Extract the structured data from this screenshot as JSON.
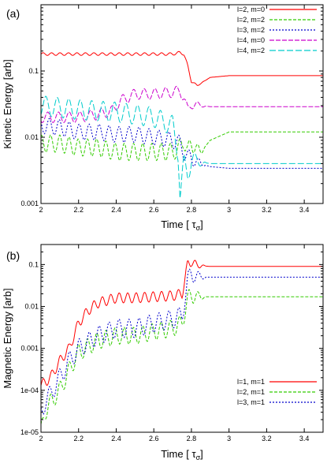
{
  "chart_data": [
    {
      "type": "line",
      "panel_label": "(a)",
      "xlabel": "Time [",
      "xlabel_sym": "τ",
      "xlabel_sub": "σ",
      "xlabel_end": "]",
      "ylabel": "Kinetic Energy [arb]",
      "xlim": [
        2.0,
        3.5
      ],
      "ylim": [
        0.001,
        1
      ],
      "yscale": "log",
      "xticks": [
        "2",
        "2.2",
        "2.4",
        "2.6",
        "2.8",
        "3",
        "3.2",
        "3.4"
      ],
      "yticks": [
        "0.001",
        "0.01",
        "0.1"
      ],
      "legend_position": "top-right",
      "series": [
        {
          "name": "l=2, m=0",
          "color": "#ff0000",
          "dash": "",
          "x": [
            2.0,
            2.1,
            2.2,
            2.3,
            2.4,
            2.5,
            2.6,
            2.7,
            2.74,
            2.76,
            2.78,
            2.8,
            2.83,
            2.9,
            3.0,
            3.2,
            3.5
          ],
          "y": [
            0.18,
            0.18,
            0.18,
            0.18,
            0.18,
            0.18,
            0.18,
            0.18,
            0.19,
            0.18,
            0.12,
            0.07,
            0.06,
            0.08,
            0.085,
            0.085,
            0.085
          ],
          "osc": 0.02
        },
        {
          "name": "l=2, m=2",
          "color": "#33cc00",
          "dash": "4,2",
          "x": [
            2.0,
            2.1,
            2.2,
            2.3,
            2.4,
            2.5,
            2.6,
            2.7,
            2.74,
            2.76,
            2.78,
            2.8,
            2.85,
            2.9,
            3.0,
            3.2,
            3.5
          ],
          "y": [
            0.008,
            0.008,
            0.007,
            0.007,
            0.006,
            0.006,
            0.006,
            0.006,
            0.007,
            0.009,
            0.006,
            0.008,
            0.006,
            0.009,
            0.012,
            0.012,
            0.012
          ],
          "osc": 0.13
        },
        {
          "name": "l=3, m=2",
          "color": "#0000cc",
          "dash": "2,2",
          "x": [
            2.0,
            2.1,
            2.2,
            2.3,
            2.4,
            2.5,
            2.6,
            2.7,
            2.74,
            2.76,
            2.78,
            2.8,
            2.85,
            2.9,
            3.0,
            3.2,
            3.5
          ],
          "y": [
            0.015,
            0.014,
            0.012,
            0.012,
            0.011,
            0.011,
            0.01,
            0.009,
            0.008,
            0.006,
            0.005,
            0.0048,
            0.004,
            0.0036,
            0.0034,
            0.0034,
            0.0034
          ],
          "osc": 0.12
        },
        {
          "name": "l=4, m=0",
          "color": "#cc00cc",
          "dash": "6,2",
          "x": [
            2.0,
            2.1,
            2.2,
            2.3,
            2.38,
            2.42,
            2.5,
            2.6,
            2.7,
            2.74,
            2.76,
            2.78,
            2.8,
            2.85,
            2.9,
            3.0,
            3.5
          ],
          "y": [
            0.02,
            0.02,
            0.02,
            0.022,
            0.025,
            0.035,
            0.045,
            0.045,
            0.048,
            0.05,
            0.04,
            0.025,
            0.032,
            0.03,
            0.029,
            0.029,
            0.029
          ],
          "osc": 0.08
        },
        {
          "name": "l=4, m=2",
          "color": "#00cccc",
          "dash": "8,3",
          "x": [
            2.0,
            2.1,
            2.2,
            2.3,
            2.4,
            2.5,
            2.6,
            2.7,
            2.73,
            2.74,
            2.76,
            2.78,
            2.8,
            2.85,
            2.9,
            3.0,
            3.5
          ],
          "y": [
            0.03,
            0.028,
            0.026,
            0.025,
            0.024,
            0.022,
            0.02,
            0.015,
            0.006,
            0.0012,
            0.004,
            0.003,
            0.0045,
            0.0042,
            0.004,
            0.004,
            0.004
          ],
          "osc": 0.15
        }
      ]
    },
    {
      "type": "line",
      "panel_label": "(b)",
      "xlabel": "Time [",
      "xlabel_sym": "τ",
      "xlabel_sub": "σ",
      "xlabel_end": "]",
      "ylabel": "Magnetic Energy [arb]",
      "xlim": [
        2.0,
        3.5
      ],
      "ylim": [
        1e-05,
        0.3
      ],
      "yscale": "log",
      "xticks": [
        "2",
        "2.2",
        "2.4",
        "2.6",
        "2.8",
        "3",
        "3.2",
        "3.4"
      ],
      "yticks": [
        "1e-05",
        "1e-04",
        "0.001",
        "0.01",
        "0.1"
      ],
      "legend_position": "bottom-right",
      "series": [
        {
          "name": "l=1, m=1",
          "color": "#ff0000",
          "dash": "",
          "x": [
            2.0,
            2.05,
            2.1,
            2.15,
            2.2,
            2.25,
            2.3,
            2.4,
            2.5,
            2.6,
            2.7,
            2.75,
            2.78,
            2.8,
            2.83,
            2.9,
            3.0,
            3.5
          ],
          "y": [
            0.00013,
            0.0002,
            0.0005,
            0.001,
            0.004,
            0.008,
            0.012,
            0.016,
            0.016,
            0.017,
            0.018,
            0.02,
            0.1,
            0.12,
            0.095,
            0.09,
            0.09,
            0.09
          ],
          "osc": 0.12
        },
        {
          "name": "l=2, m=1",
          "color": "#33cc00",
          "dash": "4,2",
          "x": [
            2.0,
            2.02,
            2.05,
            2.1,
            2.15,
            2.2,
            2.3,
            2.4,
            2.5,
            2.6,
            2.7,
            2.75,
            2.78,
            2.8,
            2.85,
            2.9,
            3.0,
            3.5
          ],
          "y": [
            1e-05,
            3e-05,
            5e-05,
            0.0001,
            0.0003,
            0.0008,
            0.0015,
            0.002,
            0.002,
            0.0025,
            0.003,
            0.004,
            0.015,
            0.018,
            0.017,
            0.017,
            0.017,
            0.017
          ],
          "osc": 0.2
        },
        {
          "name": "l=3, m=1",
          "color": "#0000cc",
          "dash": "2,2",
          "x": [
            2.0,
            2.02,
            2.05,
            2.1,
            2.15,
            2.2,
            2.3,
            2.4,
            2.5,
            2.6,
            2.7,
            2.75,
            2.78,
            2.8,
            2.85,
            2.9,
            3.0,
            3.5
          ],
          "y": [
            3e-05,
            5e-05,
            8e-05,
            0.0002,
            0.0005,
            0.001,
            0.002,
            0.003,
            0.003,
            0.004,
            0.005,
            0.006,
            0.04,
            0.06,
            0.05,
            0.05,
            0.05,
            0.05
          ],
          "osc": 0.22
        }
      ]
    }
  ]
}
